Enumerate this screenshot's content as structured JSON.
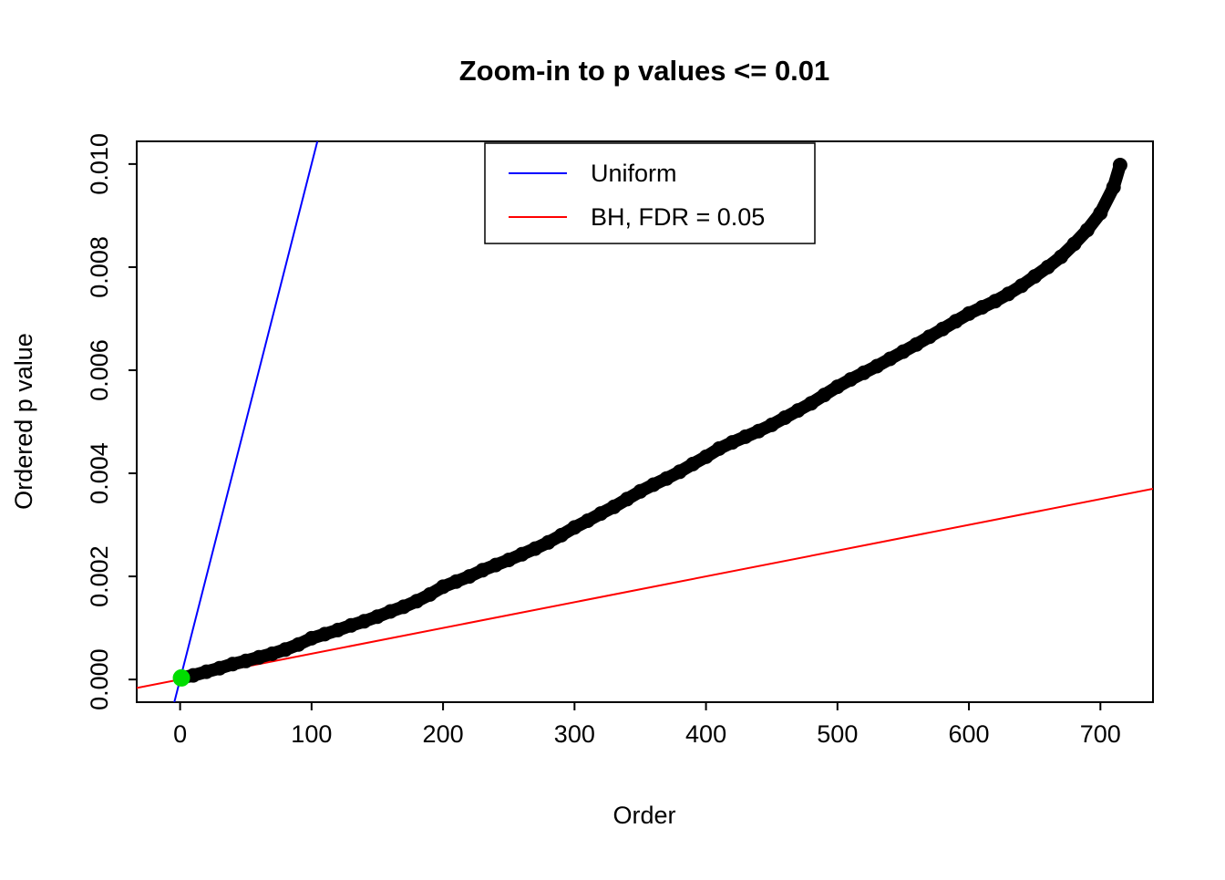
{
  "chart_data": {
    "type": "scatter",
    "title": "Zoom-in to p values <= 0.01",
    "xlabel": "Order",
    "ylabel": "Ordered p value",
    "xlim": [
      -33,
      740
    ],
    "ylim": [
      -0.00044,
      0.01044
    ],
    "x_ticks": [
      0,
      100,
      200,
      300,
      400,
      500,
      600,
      700
    ],
    "y_ticks": [
      0.0,
      0.002,
      0.004,
      0.006,
      0.008,
      0.01
    ],
    "y_tick_labels": [
      "0.000",
      "0.002",
      "0.004",
      "0.006",
      "0.008",
      "0.010"
    ],
    "grid": false,
    "background": "#ffffff",
    "legend": {
      "position": "top-center",
      "entries": [
        {
          "label": "Uniform",
          "color": "#0000FF"
        },
        {
          "label": "BH, FDR = 0.05",
          "color": "#FF0000"
        }
      ]
    },
    "lines": [
      {
        "name": "uniform",
        "color": "#0000FF",
        "slope": 0.0001,
        "intercept": 0
      },
      {
        "name": "bh-fdr-0.05",
        "color": "#FF0000",
        "slope": 5e-06,
        "intercept": 0
      }
    ],
    "points": {
      "name": "ordered-p-values",
      "color": "#000000",
      "orders": [
        1,
        10,
        20,
        30,
        40,
        50,
        60,
        70,
        80,
        90,
        100,
        110,
        120,
        130,
        140,
        150,
        160,
        170,
        180,
        190,
        200,
        210,
        220,
        230,
        240,
        250,
        260,
        270,
        280,
        290,
        300,
        310,
        320,
        330,
        340,
        350,
        360,
        370,
        380,
        390,
        400,
        410,
        420,
        430,
        440,
        450,
        460,
        470,
        480,
        490,
        500,
        510,
        520,
        530,
        540,
        550,
        560,
        570,
        580,
        590,
        600,
        610,
        620,
        630,
        640,
        650,
        660,
        670,
        680,
        690,
        700,
        710,
        715
      ],
      "pvalues": [
        3e-05,
        8e-05,
        0.00015,
        0.00022,
        0.0003,
        0.00036,
        0.00043,
        0.0005,
        0.00058,
        0.00068,
        0.0008,
        0.00088,
        0.00096,
        0.00105,
        0.00113,
        0.00122,
        0.00132,
        0.00141,
        0.00152,
        0.00165,
        0.0018,
        0.0019,
        0.002,
        0.00212,
        0.00222,
        0.00232,
        0.00243,
        0.00254,
        0.00266,
        0.0028,
        0.00295,
        0.00308,
        0.00322,
        0.00335,
        0.0035,
        0.00365,
        0.00378,
        0.0039,
        0.00403,
        0.00418,
        0.00432,
        0.00448,
        0.0046,
        0.00471,
        0.00482,
        0.00494,
        0.00508,
        0.00522,
        0.00536,
        0.00552,
        0.00568,
        0.00582,
        0.00595,
        0.00608,
        0.00622,
        0.00636,
        0.0065,
        0.00665,
        0.0068,
        0.00695,
        0.0071,
        0.00722,
        0.00734,
        0.00748,
        0.00764,
        0.00782,
        0.008,
        0.0082,
        0.00845,
        0.00872,
        0.00905,
        0.00955,
        0.00998
      ]
    },
    "highlight_point": {
      "x": 1,
      "y": 3e-05,
      "color": "#00DD00",
      "name": "smallest-p-value"
    }
  }
}
